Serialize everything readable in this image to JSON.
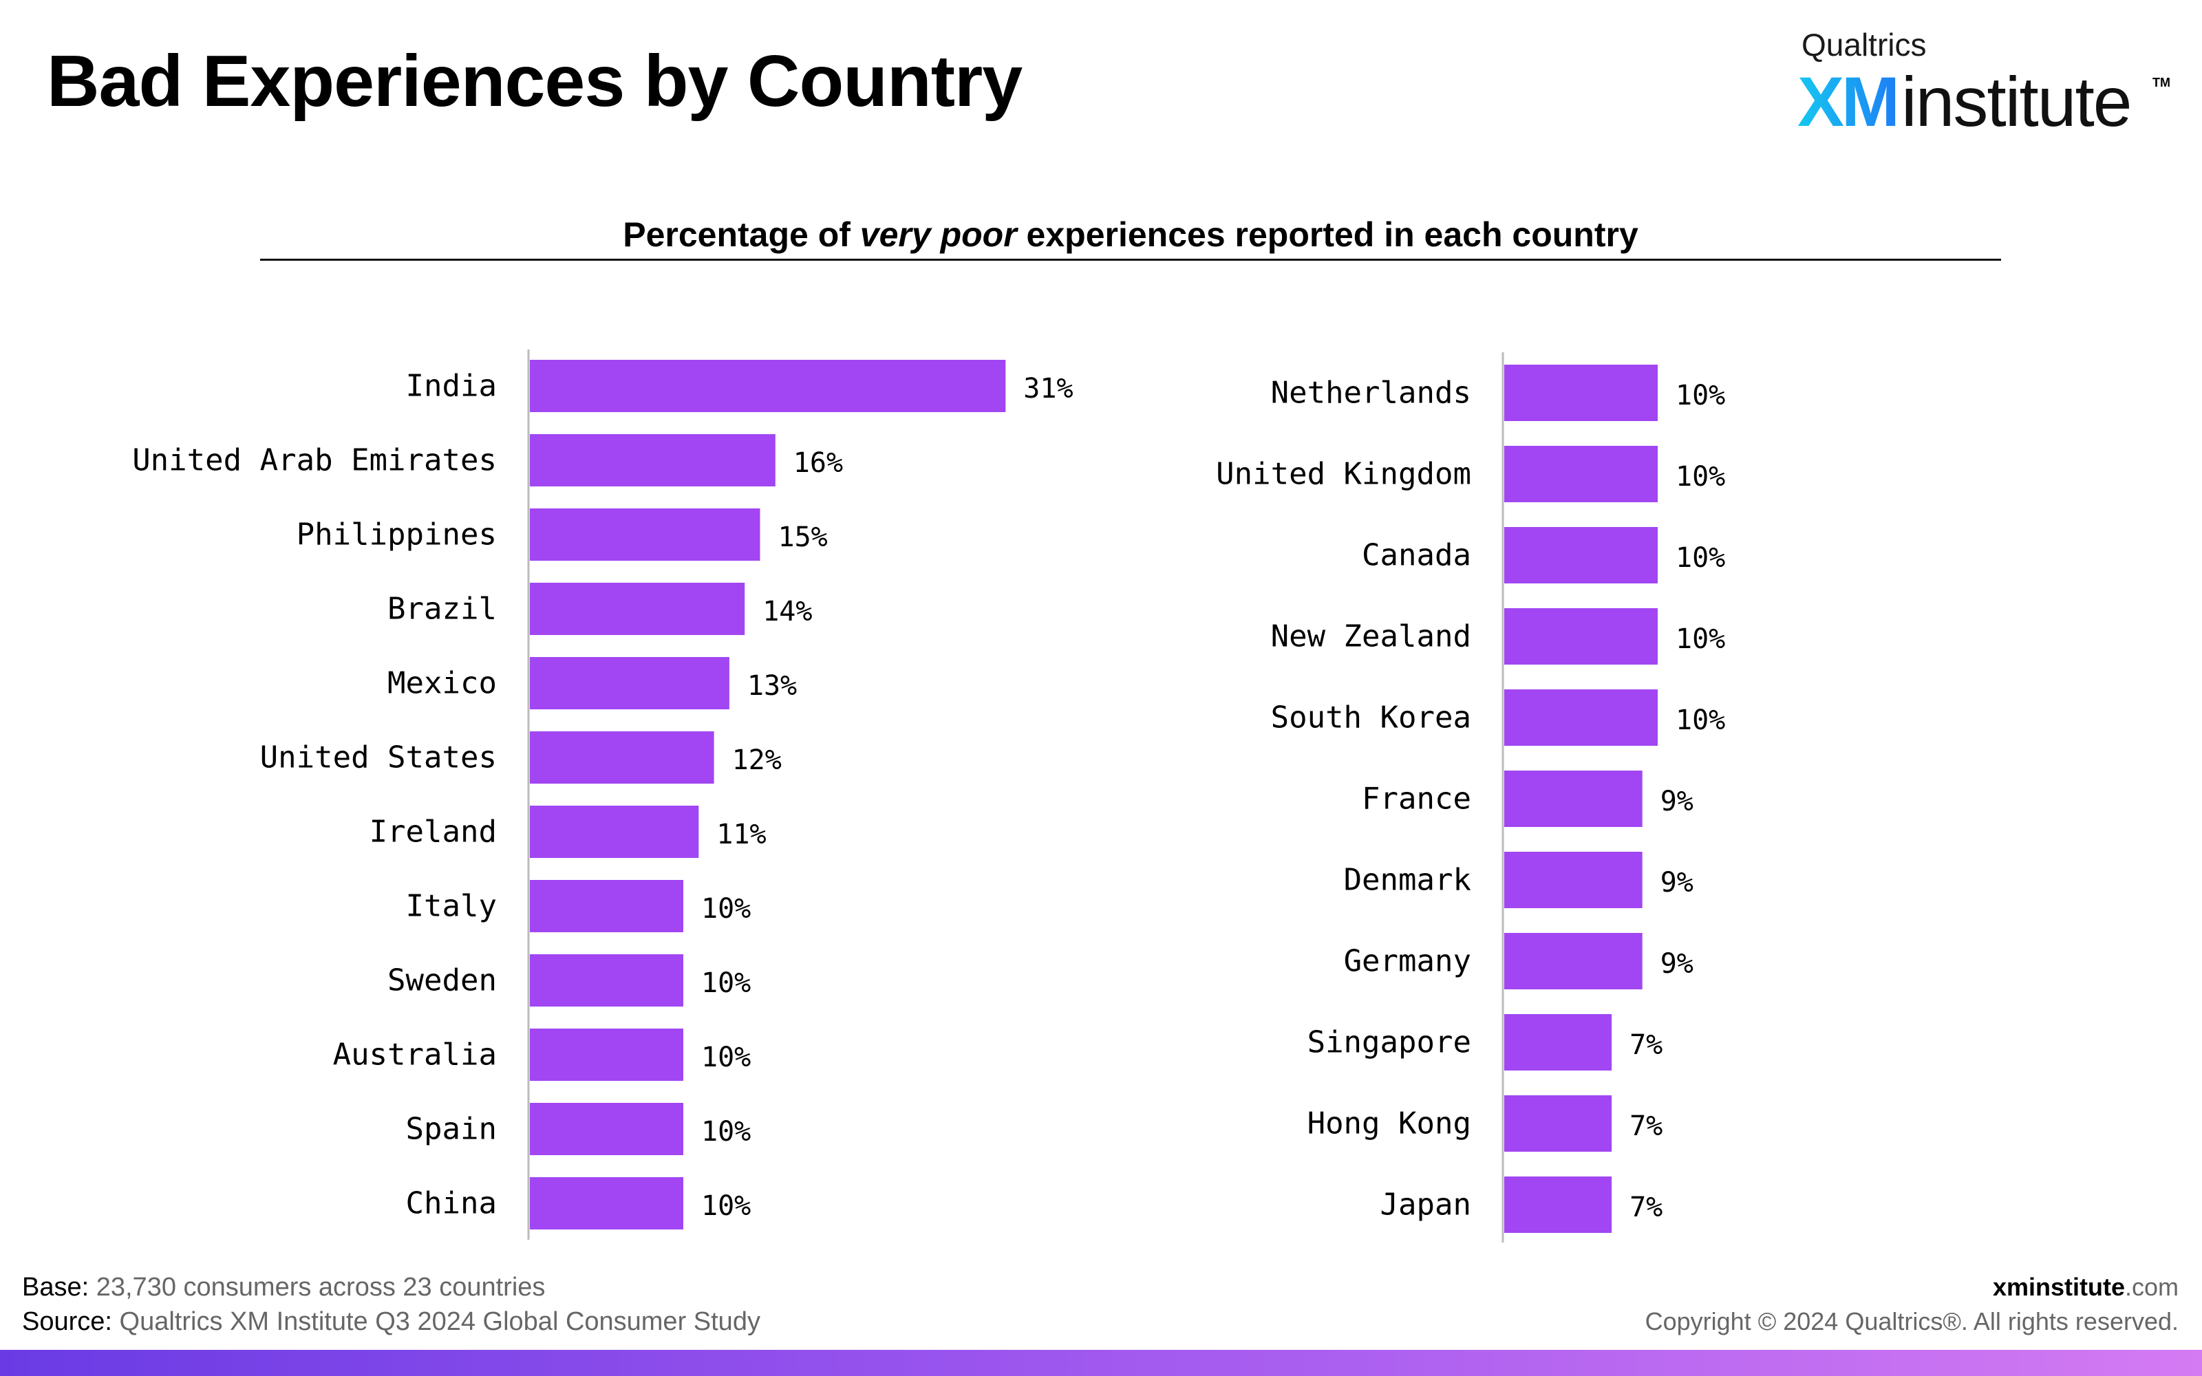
{
  "title": "Bad Experiences by Country",
  "logo": {
    "brand": "Qualtrics",
    "xm": "XM",
    "institute": "institute",
    "tm": "TM"
  },
  "subtitle": {
    "pre": "Percentage of ",
    "em": "very poor",
    "post": " experiences reported in each country"
  },
  "colors": {
    "bar": "#a146f2",
    "axis": "#bbbbbb",
    "text": "#000000"
  },
  "chart_data": [
    {
      "type": "bar",
      "orientation": "horizontal",
      "categories": [
        "India",
        "United Arab Emirates",
        "Philippines",
        "Brazil",
        "Mexico",
        "United States",
        "Ireland",
        "Italy",
        "Sweden",
        "Australia",
        "Spain",
        "China"
      ],
      "values": [
        31,
        16,
        15,
        14,
        13,
        12,
        11,
        10,
        10,
        10,
        10,
        10
      ],
      "labels": [
        "31%",
        "16%",
        "15%",
        "14%",
        "13%",
        "12%",
        "11%",
        "10%",
        "10%",
        "10%",
        "10%",
        "10%"
      ],
      "unit": "%"
    },
    {
      "type": "bar",
      "orientation": "horizontal",
      "categories": [
        "Netherlands",
        "United Kingdom",
        "Canada",
        "New Zealand",
        "South Korea",
        "France",
        "Denmark",
        "Germany",
        "Singapore",
        "Hong Kong",
        "Japan"
      ],
      "values": [
        10,
        10,
        10,
        10,
        10,
        9,
        9,
        9,
        7,
        7,
        7
      ],
      "labels": [
        "10%",
        "10%",
        "10%",
        "10%",
        "10%",
        "9%",
        "9%",
        "9%",
        "7%",
        "7%",
        "7%"
      ],
      "unit": "%"
    }
  ],
  "footer": {
    "base_label": "Base:",
    "base_text": " 23,730 consumers across 23 countries",
    "source_label": "Source:",
    "source_text": " Qualtrics XM Institute Q3 2024 Global Consumer Study",
    "site_bold": "xminstitute",
    "site_rest": ".com",
    "copyright": "Copyright © 2024 Qualtrics®. All rights reserved."
  }
}
